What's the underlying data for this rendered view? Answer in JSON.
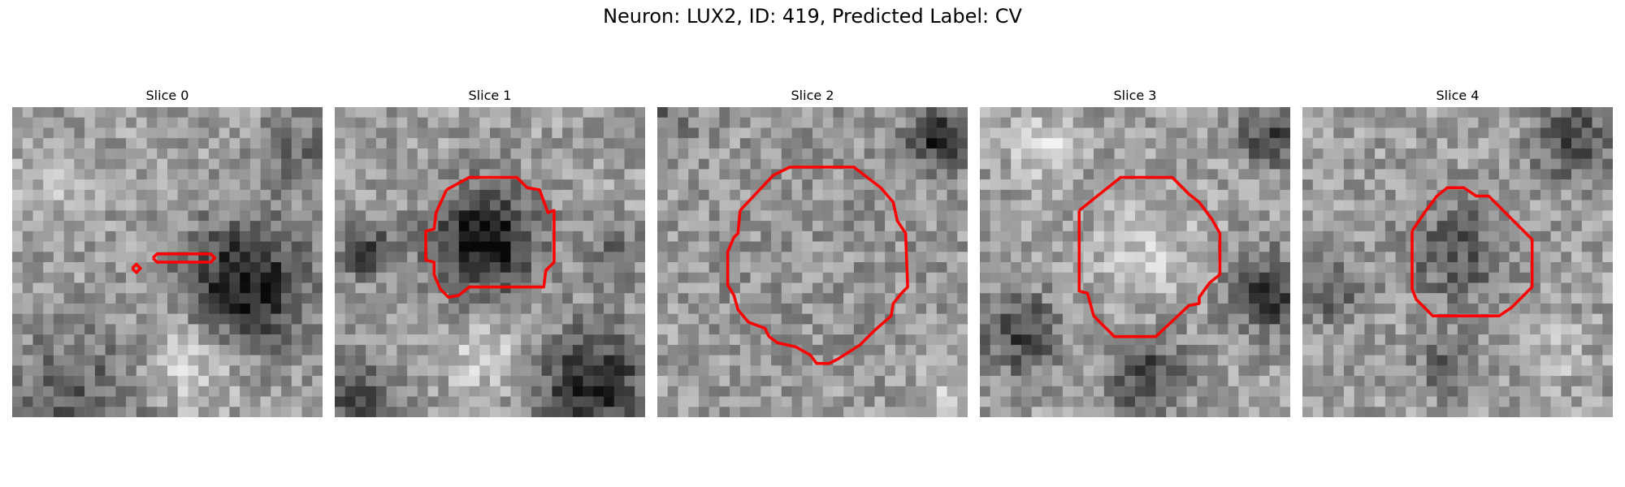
{
  "figure": {
    "title": "Neuron: LUX2, ID: 419, Predicted Label: CV"
  },
  "panels": [
    {
      "title": "Slice 0"
    },
    {
      "title": "Slice 1"
    },
    {
      "title": "Slice 2"
    },
    {
      "title": "Slice 3"
    },
    {
      "title": "Slice 4"
    }
  ],
  "colors": {
    "contour": "#ff0000",
    "background": "#ffffff"
  }
}
